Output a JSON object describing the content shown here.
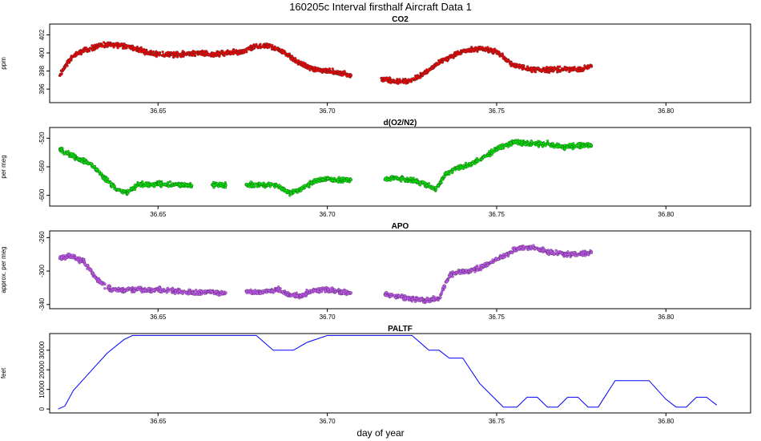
{
  "figure": {
    "title": "160205c   Interval firsthalf Aircraft Data 1",
    "xlabel": "day of year"
  },
  "chart_data": [
    {
      "type": "scatter",
      "title": "CO2",
      "ylabel": "ppm",
      "xlim": [
        36.618,
        36.825
      ],
      "ylim": [
        394.5,
        403.2
      ],
      "xticks": [
        36.65,
        36.7,
        36.75,
        36.8
      ],
      "xtick_labels": [
        "36.65",
        "36.70",
        "36.75",
        "36.80"
      ],
      "yticks": [
        396,
        398,
        400,
        402
      ],
      "ytick_labels": [
        "396",
        "398",
        "400",
        "402"
      ],
      "color": "#ff0000",
      "series": [
        {
          "name": "CO2",
          "x": [
            36.621,
            36.623,
            36.625,
            36.628,
            36.632,
            36.636,
            36.64,
            36.644,
            36.648,
            36.65,
            36.654,
            36.658,
            36.662,
            36.666,
            36.67,
            36.675,
            36.678,
            36.682,
            36.686,
            36.689,
            36.692,
            36.696,
            36.7,
            36.703,
            36.707,
            36.716,
            36.72,
            36.724,
            36.728,
            36.732,
            36.736,
            36.74,
            36.745,
            36.75,
            36.755,
            36.76,
            36.765,
            36.77,
            36.775,
            36.778
          ],
          "y": [
            397.5,
            398.8,
            399.6,
            400.3,
            400.7,
            401.0,
            400.8,
            400.4,
            400.0,
            399.9,
            399.8,
            399.9,
            400.0,
            399.8,
            400.0,
            400.1,
            400.6,
            400.8,
            400.3,
            399.6,
            398.8,
            398.2,
            398.0,
            397.8,
            397.5,
            397.2,
            396.8,
            396.9,
            397.6,
            398.7,
            399.5,
            400.2,
            400.5,
            400.1,
            398.7,
            398.2,
            398.1,
            398.2,
            398.2,
            398.5
          ]
        }
      ]
    },
    {
      "type": "scatter",
      "title": "d(O2/N2)",
      "ylabel": "per meg",
      "xlim": [
        36.618,
        36.825
      ],
      "ylim": [
        -615,
        -505
      ],
      "xticks": [
        36.65,
        36.7,
        36.75,
        36.8
      ],
      "xtick_labels": [
        "36.65",
        "36.70",
        "36.75",
        "36.80"
      ],
      "yticks": [
        -600,
        -560,
        -520
      ],
      "ytick_labels": [
        "-600",
        "-560",
        "-520"
      ],
      "color": "#00ee00",
      "series": [
        {
          "name": "d(O2/N2)",
          "x": [
            36.621,
            36.623,
            36.626,
            36.63,
            36.634,
            36.638,
            36.641,
            36.644,
            36.648,
            36.65,
            36.654,
            36.66,
            36.666,
            36.67,
            36.676,
            36.68,
            36.685,
            36.689,
            36.692,
            36.696,
            36.7,
            36.704,
            36.707,
            36.717,
            36.72,
            36.724,
            36.728,
            36.732,
            36.735,
            36.738,
            36.742,
            36.746,
            36.75,
            36.755,
            36.76,
            36.765,
            36.77,
            36.775,
            36.778
          ],
          "y": [
            -535,
            -540,
            -548,
            -555,
            -575,
            -592,
            -597,
            -585,
            -585,
            -584,
            -585,
            -586,
            -585,
            -586,
            -585,
            -585,
            -586,
            -597,
            -592,
            -580,
            -577,
            -579,
            -578,
            -578,
            -575,
            -578,
            -583,
            -592,
            -570,
            -562,
            -558,
            -547,
            -535,
            -525,
            -528,
            -528,
            -532,
            -530,
            -530
          ]
        }
      ]
    },
    {
      "type": "scatter",
      "title": "APO",
      "ylabel": "approx. per meg",
      "xlim": [
        36.618,
        36.825
      ],
      "ylim": [
        -345,
        -252
      ],
      "xticks": [
        36.65,
        36.7,
        36.75,
        36.8
      ],
      "xtick_labels": [
        "36.65",
        "36.70",
        "36.75",
        "36.80"
      ],
      "yticks": [
        -340,
        -300,
        -260
      ],
      "ytick_labels": [
        "-340",
        "-300",
        "-260"
      ],
      "color": "#cc55ff",
      "series": [
        {
          "name": "APO",
          "x": [
            36.621,
            36.624,
            36.628,
            36.632,
            36.636,
            36.64,
            36.644,
            36.648,
            36.65,
            36.655,
            36.66,
            36.665,
            36.67,
            36.676,
            36.68,
            36.685,
            36.689,
            36.692,
            36.696,
            36.7,
            36.704,
            36.707,
            36.717,
            36.721,
            36.725,
            36.729,
            36.733,
            36.736,
            36.74,
            36.744,
            36.748,
            36.752,
            36.756,
            36.76,
            36.765,
            36.77,
            36.775,
            36.778
          ],
          "y": [
            -285,
            -282,
            -288,
            -310,
            -322,
            -323,
            -322,
            -323,
            -322,
            -324,
            -326,
            -325,
            -326,
            -324,
            -326,
            -322,
            -328,
            -330,
            -323,
            -322,
            -325,
            -326,
            -328,
            -330,
            -333,
            -335,
            -333,
            -305,
            -300,
            -298,
            -290,
            -282,
            -273,
            -272,
            -277,
            -280,
            -280,
            -278
          ]
        }
      ]
    },
    {
      "type": "line",
      "title": "PALTF",
      "ylabel": "feet",
      "xlim": [
        36.618,
        36.825
      ],
      "ylim": [
        -2000,
        38500
      ],
      "xticks": [
        36.65,
        36.7,
        36.75,
        36.8
      ],
      "xtick_labels": [
        "36.65",
        "36.70",
        "36.75",
        "36.80"
      ],
      "yticks": [
        0,
        10000,
        20000,
        30000
      ],
      "ytick_labels": [
        "0",
        "10000",
        "20000",
        "30000"
      ],
      "color": "#0000ff",
      "series": [
        {
          "name": "PALTF",
          "x": [
            36.6205,
            36.6225,
            36.625,
            36.63,
            36.635,
            36.64,
            36.6425,
            36.66,
            36.679,
            36.684,
            36.69,
            36.694,
            36.7,
            36.725,
            36.73,
            36.733,
            36.736,
            36.74,
            36.745,
            36.752,
            36.756,
            36.759,
            36.762,
            36.765,
            36.768,
            36.771,
            36.774,
            36.777,
            36.78,
            36.785,
            36.79,
            36.795,
            36.8,
            36.803,
            36.806,
            36.809,
            36.812,
            36.815
          ],
          "y": [
            0,
            1500,
            9500,
            19000,
            28500,
            35500,
            37500,
            37500,
            37500,
            30000,
            30000,
            34000,
            37500,
            37500,
            30000,
            30000,
            26000,
            26000,
            13000,
            1000,
            1000,
            6000,
            6000,
            1000,
            1000,
            6000,
            6000,
            1000,
            1000,
            14500,
            14500,
            14500,
            5000,
            1000,
            1000,
            6000,
            6000,
            2000
          ]
        }
      ]
    }
  ]
}
